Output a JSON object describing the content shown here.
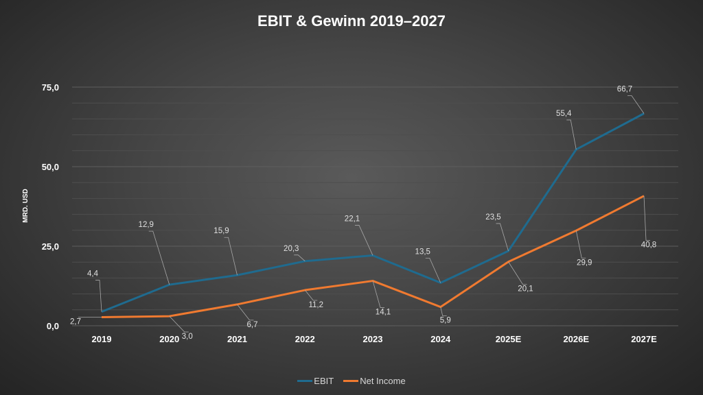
{
  "chart_data": {
    "type": "line",
    "title": "EBIT & Gewinn 2019–2027",
    "xlabel": "",
    "ylabel": "MRD. USD",
    "categories": [
      "2019",
      "2020",
      "2021",
      "2022",
      "2023",
      "2024",
      "2025E",
      "2026E",
      "2027E"
    ],
    "ylim": [
      0,
      75
    ],
    "yticks": [
      "0,0",
      "25,0",
      "50,0",
      "75,0"
    ],
    "grid": true,
    "legend_position": "bottom",
    "series": [
      {
        "name": "EBIT",
        "color": "#1f6b8f",
        "values": [
          4.4,
          12.9,
          15.9,
          20.3,
          22.1,
          13.5,
          23.5,
          55.4,
          66.7
        ],
        "labels": [
          "4,4",
          "12,9",
          "15,9",
          "20,3",
          "22,1",
          "13,5",
          "23,5",
          "55,4",
          "66,7"
        ]
      },
      {
        "name": "Net Income",
        "color": "#f07a30",
        "values": [
          2.7,
          3.0,
          6.7,
          11.2,
          14.1,
          5.9,
          20.1,
          29.9,
          40.8
        ],
        "labels": [
          "2,7",
          "3,0",
          "6,7",
          "11,2",
          "14,1",
          "5,9",
          "20,1",
          "29,9",
          "40,8"
        ]
      }
    ]
  }
}
